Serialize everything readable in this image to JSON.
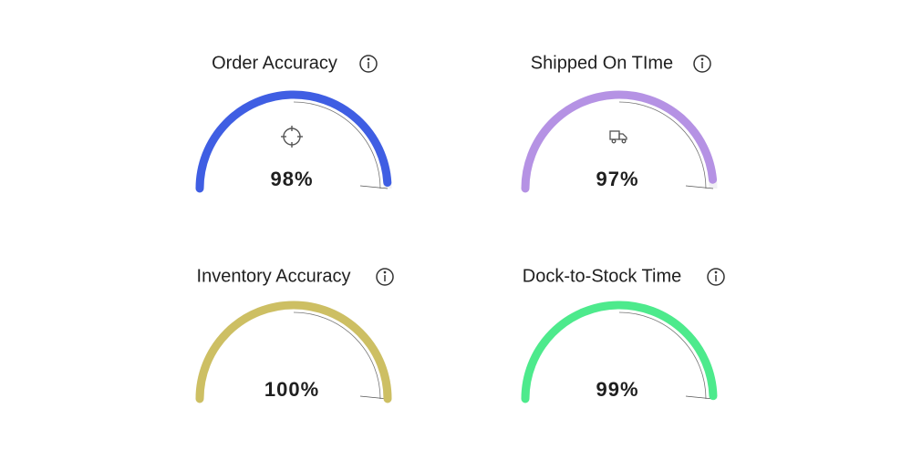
{
  "chart_data": [
    {
      "type": "gauge",
      "title": "Order Accuracy",
      "value": 98,
      "value_label": "98%",
      "ylim": [
        0,
        100
      ],
      "color": "#3f5ee3"
    },
    {
      "type": "gauge",
      "title": "Shipped On TIme",
      "value": 97,
      "value_label": "97%",
      "ylim": [
        0,
        100
      ],
      "color": "#b592e4"
    },
    {
      "type": "gauge",
      "title": "Inventory Accuracy",
      "value": 100,
      "value_label": "100%",
      "ylim": [
        0,
        100
      ],
      "color": "#cdbf63"
    },
    {
      "type": "gauge",
      "title": "Dock-to-Stock Time",
      "value": 99,
      "value_label": "99%",
      "ylim": [
        0,
        100
      ],
      "color": "#4dea8c"
    }
  ]
}
